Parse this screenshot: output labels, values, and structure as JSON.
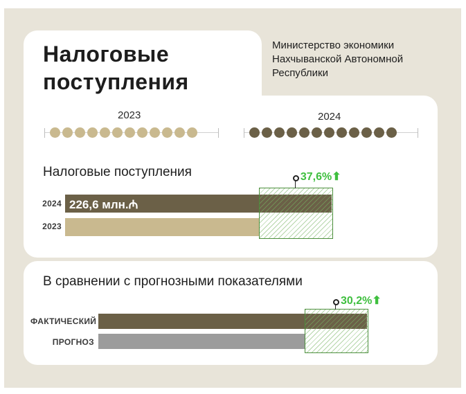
{
  "header": {
    "title_line1": "Налоговые",
    "title_line2": "поступления",
    "ministry_line1": "Министерство экономики",
    "ministry_line2": "Нахчыванской Автономной",
    "ministry_line3": "Республики"
  },
  "timeline": {
    "year_a": "2023",
    "year_b": "2024",
    "dots_per_year": 12,
    "color_a": "#c9b98f",
    "color_b": "#6b6047"
  },
  "colors": {
    "bar_2024": "#6b6047",
    "bar_2023": "#c9b98f",
    "bar_actual": "#6b6047",
    "bar_forecast": "#9c9c9c",
    "growth_green": "#3fbf3f"
  },
  "chart_data": [
    {
      "type": "bar",
      "title": "Налоговые поступления",
      "categories": [
        "2024",
        "2023"
      ],
      "values": [
        226.6,
        164.7
      ],
      "data_label": "226,6 млн.₼",
      "growth_label": "37,6%⬆"
    },
    {
      "type": "bar",
      "title": "В сравнении с прогнозными показателями",
      "categories": [
        "ФАКТИЧЕСКИЙ",
        "ПРОГНОЗ"
      ],
      "values": [
        130.2,
        100
      ],
      "growth_label": "30,2%⬆"
    }
  ]
}
